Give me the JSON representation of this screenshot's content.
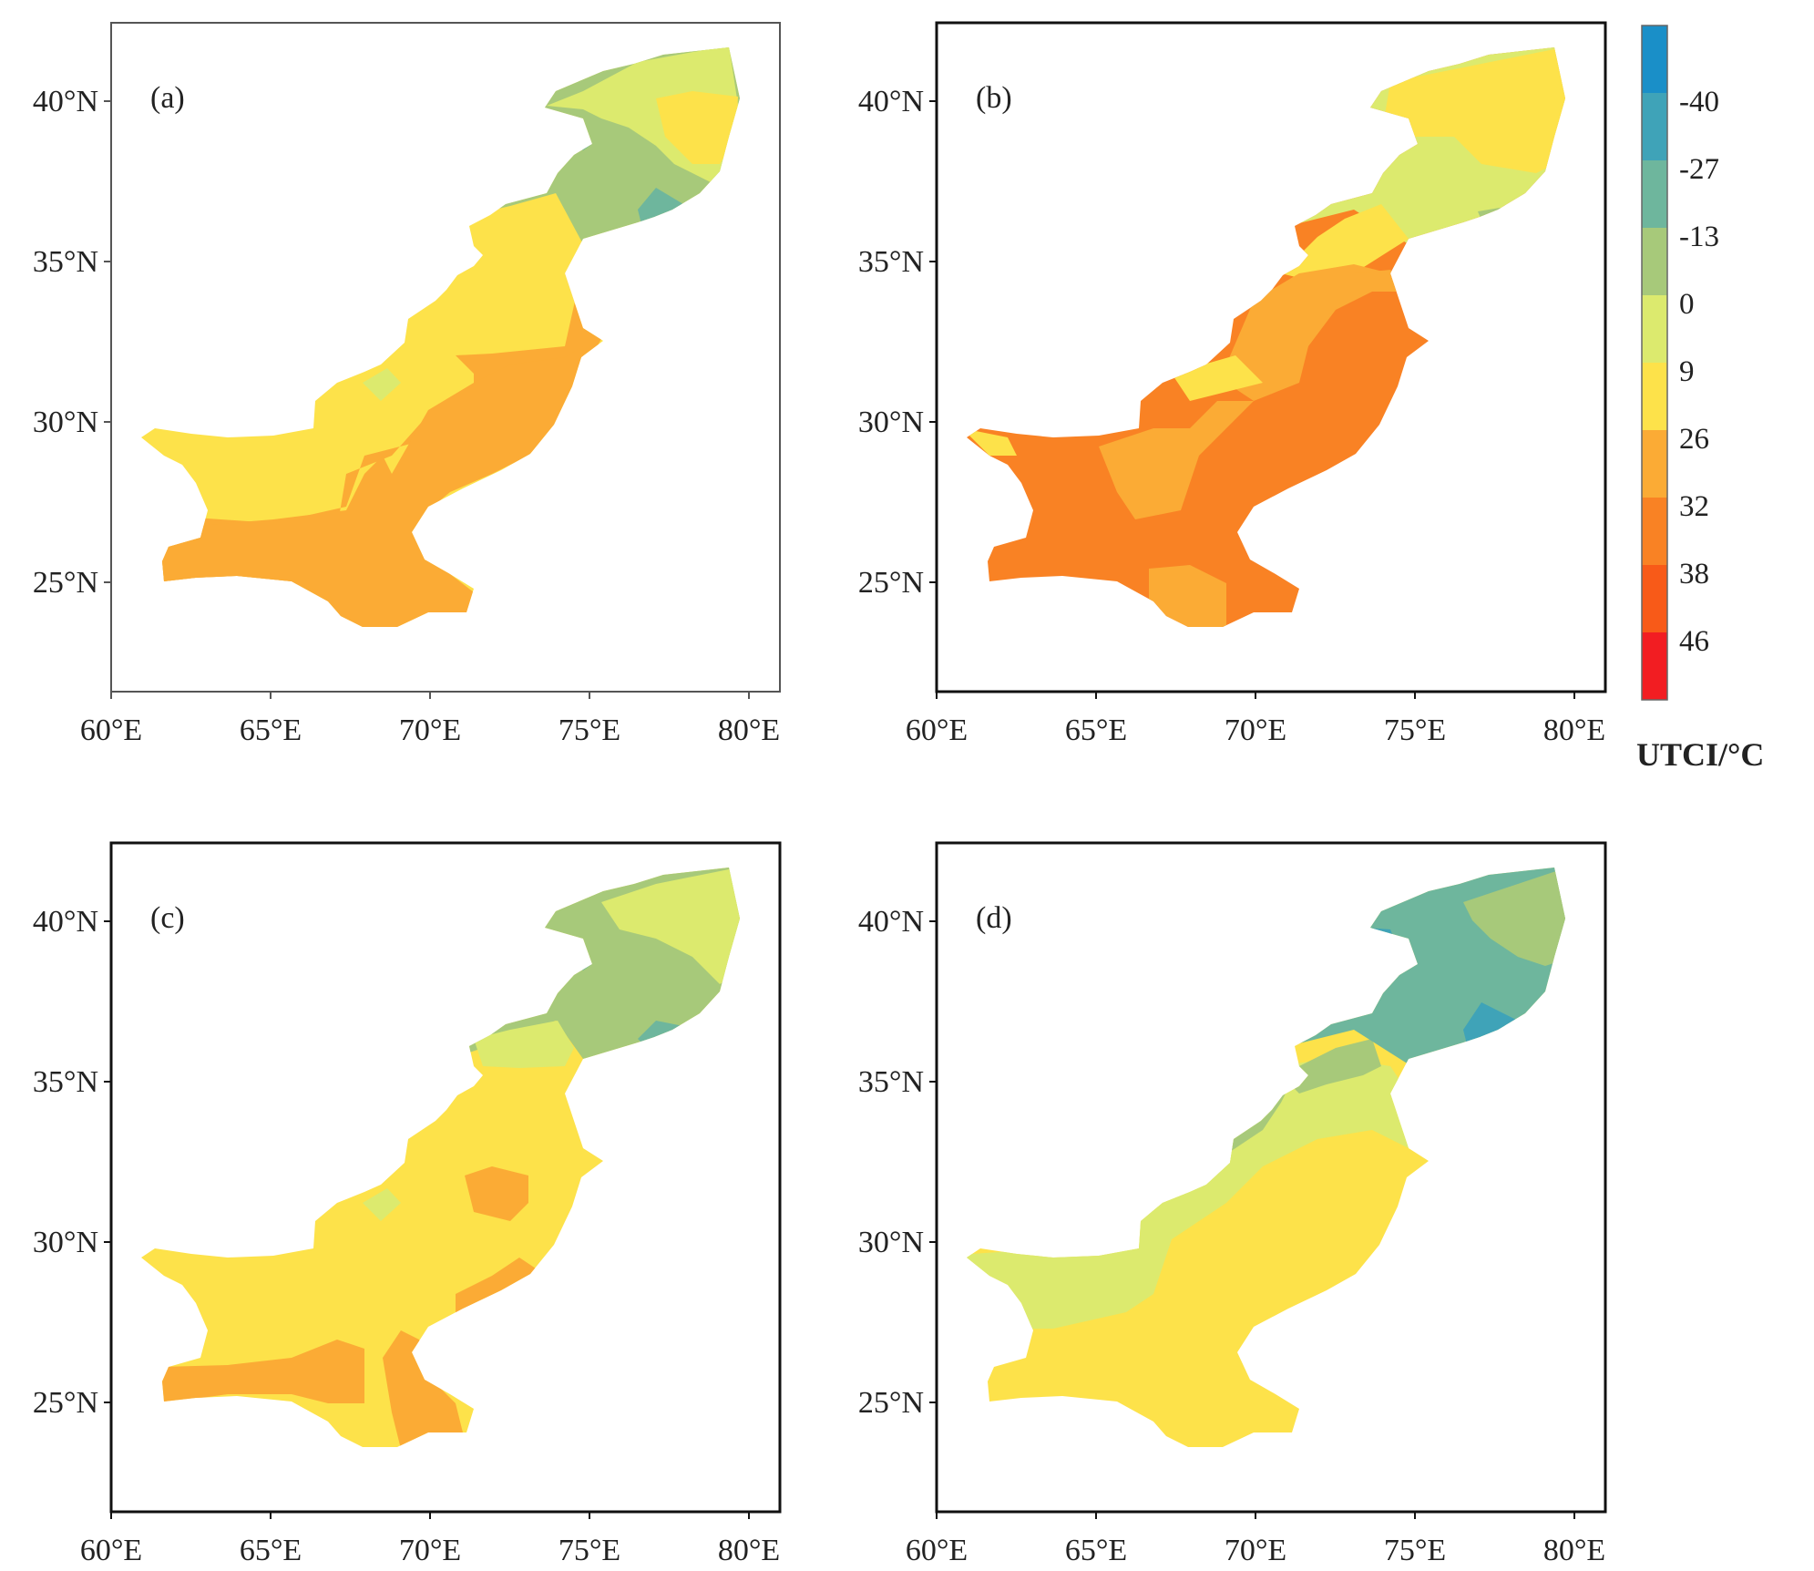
{
  "figure": {
    "colorbar": {
      "title": "UTCI/°C",
      "tick_labels": [
        "-40",
        "-27",
        "-13",
        "0",
        "9",
        "26",
        "32",
        "38",
        "46"
      ],
      "colors": [
        "#1a8fc8",
        "#3fa3b8",
        "#6eb69d",
        "#a7c97a",
        "#dcea6e",
        "#fde24a",
        "#fbab35",
        "#f98224",
        "#f85a18",
        "#f21d22"
      ]
    },
    "axes": {
      "x_ticks": [
        "60°E",
        "65°E",
        "70°E",
        "75°E",
        "80°E"
      ],
      "y_ticks": [
        "40°N",
        "35°N",
        "30°N",
        "25°N"
      ],
      "lon_range": [
        60,
        81
      ],
      "lat_range": [
        21.8,
        42.4
      ]
    },
    "panels": [
      {
        "label": "(a)"
      },
      {
        "label": "(b)"
      },
      {
        "label": "(c)"
      },
      {
        "label": "(d)"
      }
    ]
  },
  "chart_data": {
    "type": "heatmap",
    "variable": "UTCI/°C",
    "panels": [
      "(a)",
      "(b)",
      "(c)",
      "(d)"
    ],
    "colorbar_breaks": [
      -40,
      -27,
      -13,
      0,
      9,
      26,
      32,
      38,
      46
    ],
    "x_ticks": [
      "60°E",
      "65°E",
      "70°E",
      "75°E",
      "80°E"
    ],
    "y_ticks": [
      "40°N",
      "35°N",
      "30°N",
      "25°N"
    ]
  }
}
